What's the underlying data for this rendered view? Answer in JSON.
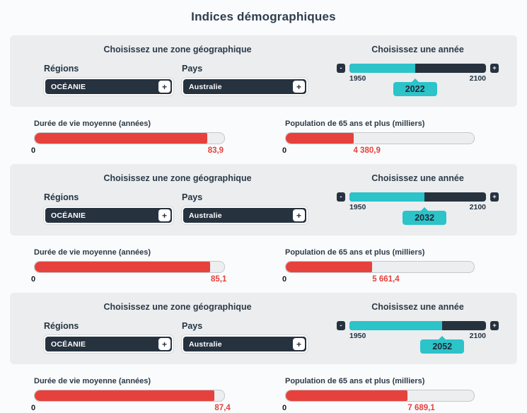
{
  "title": "Indices démographiques",
  "shared": {
    "zone_title": "Choisissez une zone géographique",
    "year_title": "Choisissez une année",
    "regions_label": "Régions",
    "country_label": "Pays",
    "life_label": "Durée de vie moyenne (années)",
    "pop_label": "Population de 65 ans et plus (milliers)",
    "bar_min": "0",
    "year_min": "1950",
    "year_max": "2100",
    "minus": "-",
    "plus": "+",
    "expand": "+"
  },
  "colors": {
    "accent_teal": "#2cc3c9",
    "dark_navy": "#27323f",
    "bar_red": "#e6413c",
    "panel_bg": "#ebedef"
  },
  "sections": [
    {
      "region": "OCÉANIE",
      "country": "Australie",
      "year": "2022",
      "slider_pct": 48,
      "life_value": "83,9",
      "life_pct": 91,
      "pop_value": "4 380,9",
      "pop_pct": 36
    },
    {
      "region": "OCÉANIE",
      "country": "Australie",
      "year": "2032",
      "slider_pct": 55,
      "life_value": "85,1",
      "life_pct": 92.6,
      "pop_value": "5 661,4",
      "pop_pct": 46
    },
    {
      "region": "OCÉANIE",
      "country": "Australie",
      "year": "2052",
      "slider_pct": 68,
      "life_value": "87,4",
      "life_pct": 94.6,
      "pop_value": "7 689,1",
      "pop_pct": 64.7
    }
  ]
}
